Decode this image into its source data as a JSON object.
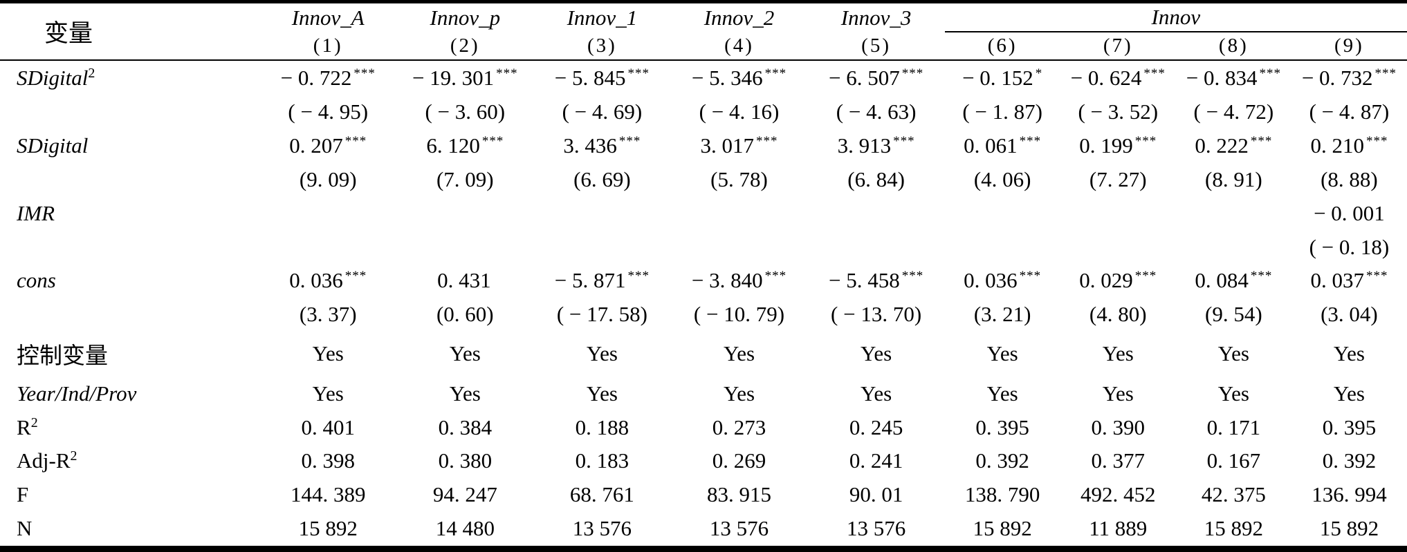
{
  "table": {
    "title_col": "变量",
    "dep_vars": [
      "Innov_A",
      "Innov_p",
      "Innov_1",
      "Innov_2",
      "Innov_3"
    ],
    "innov_span": "Innov",
    "col_nums": [
      "(1)",
      "(2)",
      "(3)",
      "(4)",
      "(5)",
      "(6)",
      "(7)",
      "(8)",
      "(9)"
    ],
    "lines": [
      {
        "label": "SDigital",
        "sup": "2",
        "cells": [
          "− 0. 722",
          "− 19. 301",
          "− 5. 845",
          "− 5. 346",
          "− 6. 507",
          "− 0. 152",
          "− 0. 624",
          "− 0. 834",
          "− 0. 732"
        ],
        "sigs": [
          "***",
          "***",
          "***",
          "***",
          "***",
          "*",
          "***",
          "***",
          "***"
        ]
      },
      {
        "label": "",
        "cells": [
          "( − 4. 95)",
          "( − 3. 60)",
          "( − 4. 69)",
          "( − 4. 16)",
          "( − 4. 63)",
          "( − 1. 87)",
          "( − 3. 52)",
          "( − 4. 72)",
          "( − 4. 87)"
        ]
      },
      {
        "label": "SDigital",
        "cells": [
          "0. 207",
          "6. 120",
          "3. 436",
          "3. 017",
          "3. 913",
          "0. 061",
          "0. 199",
          "0. 222",
          "0. 210"
        ],
        "sigs": [
          "***",
          "***",
          "***",
          "***",
          "***",
          "***",
          "***",
          "***",
          "***"
        ]
      },
      {
        "label": "",
        "cells": [
          "(9. 09)",
          "(7. 09)",
          "(6. 69)",
          "(5. 78)",
          "(6. 84)",
          "(4. 06)",
          "(7. 27)",
          "(8. 91)",
          "(8. 88)"
        ]
      },
      {
        "label": "IMR",
        "cells": [
          "",
          "",
          "",
          "",
          "",
          "",
          "",
          "",
          "− 0. 001"
        ]
      },
      {
        "label": "",
        "cells": [
          "",
          "",
          "",
          "",
          "",
          "",
          "",
          "",
          "( − 0. 18)"
        ]
      },
      {
        "label": "cons",
        "cells": [
          "0. 036",
          "0. 431",
          "− 5. 871",
          "− 3. 840",
          "− 5. 458",
          "0. 036",
          "0. 029",
          "0. 084",
          "0. 037"
        ],
        "sigs": [
          "***",
          "",
          "***",
          "***",
          "***",
          "***",
          "***",
          "***",
          "***"
        ]
      },
      {
        "label": "",
        "cells": [
          "(3. 37)",
          "(0. 60)",
          "( − 17. 58)",
          "( − 10. 79)",
          "( − 13. 70)",
          "(3. 21)",
          "(4. 80)",
          "(9. 54)",
          "(3. 04)"
        ]
      },
      {
        "label": "控制变量",
        "cells": [
          "Yes",
          "Yes",
          "Yes",
          "Yes",
          "Yes",
          "Yes",
          "Yes",
          "Yes",
          "Yes"
        ]
      },
      {
        "label": "Year/Ind/Prov",
        "cells": [
          "Yes",
          "Yes",
          "Yes",
          "Yes",
          "Yes",
          "Yes",
          "Yes",
          "Yes",
          "Yes"
        ]
      },
      {
        "label": "R",
        "sup": "2",
        "cells": [
          "0. 401",
          "0. 384",
          "0. 188",
          "0. 273",
          "0. 245",
          "0. 395",
          "0. 390",
          "0. 171",
          "0. 395"
        ]
      },
      {
        "label": "Adj-R",
        "sup": "2",
        "cells": [
          "0. 398",
          "0. 380",
          "0. 183",
          "0. 269",
          "0. 241",
          "0. 392",
          "0. 377",
          "0. 167",
          "0. 392"
        ]
      },
      {
        "label": "F",
        "cells": [
          "144. 389",
          "94. 247",
          "68. 761",
          "83. 915",
          "90. 01",
          "138. 790",
          "492. 452",
          "42. 375",
          "136. 994"
        ]
      },
      {
        "label": "N",
        "cells": [
          "15 892",
          "14 480",
          "13 576",
          "13 576",
          "13 576",
          "15 892",
          "11 889",
          "15 892",
          "15 892"
        ]
      }
    ]
  }
}
